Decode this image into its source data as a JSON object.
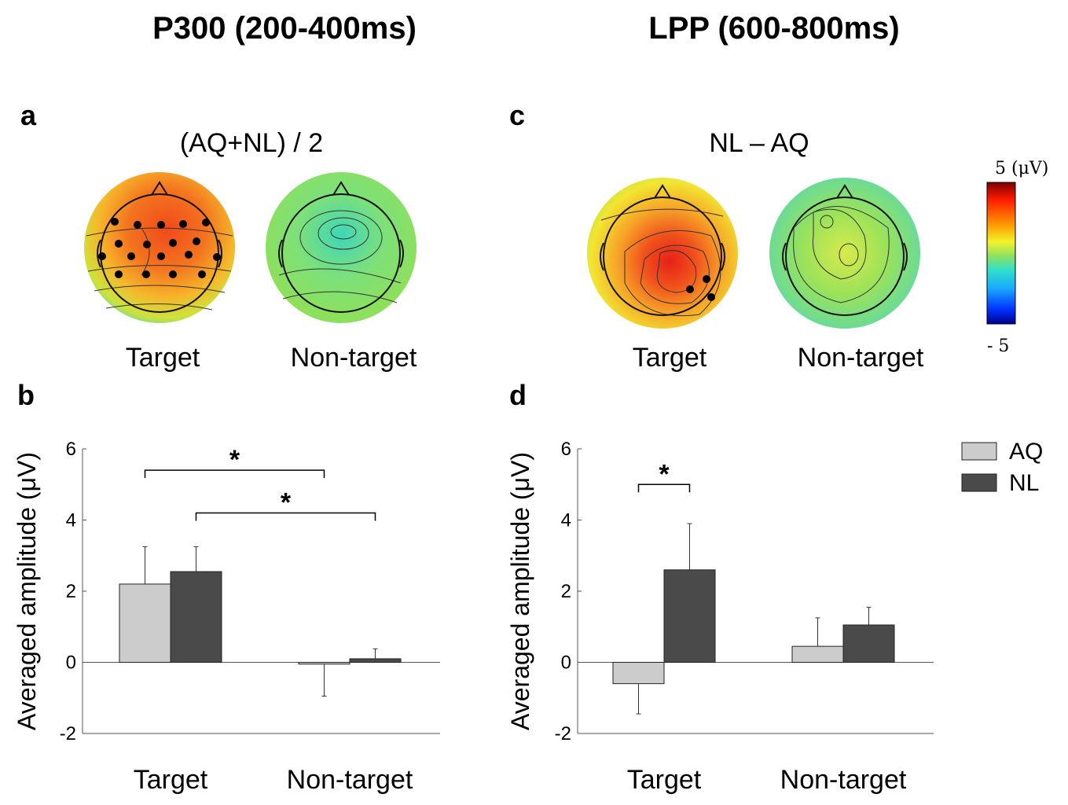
{
  "columns": {
    "left_title": "P300 (200-400ms)",
    "right_title": "LPP (600-800ms)"
  },
  "panels": {
    "a": {
      "letter": "a",
      "title": "(AQ+NL) / 2",
      "maps": [
        "Target",
        "Non-target"
      ]
    },
    "b": {
      "letter": "b"
    },
    "c": {
      "letter": "c",
      "title": "NL – AQ",
      "maps": [
        "Target",
        "Non-target"
      ]
    },
    "d": {
      "letter": "d"
    }
  },
  "colorbar": {
    "max_label": "5 (μV)",
    "min_label": "- 5"
  },
  "legend": {
    "items": [
      {
        "name": "AQ",
        "color": "#cccccc"
      },
      {
        "name": "NL",
        "color": "#4a4a4a"
      }
    ]
  },
  "chart_data": [
    {
      "panel": "b",
      "type": "bar",
      "categories": [
        "Target",
        "Non-target"
      ],
      "ylabel": "Averaged amplitude (μV)",
      "ylim": [
        -2,
        6
      ],
      "yticks": [
        -2,
        0,
        2,
        4,
        6
      ],
      "series": [
        {
          "name": "AQ",
          "values": [
            2.2,
            -0.05
          ],
          "errors": [
            1.05,
            0.9
          ]
        },
        {
          "name": "NL",
          "values": [
            2.55,
            0.1
          ],
          "errors": [
            0.7,
            0.28
          ]
        }
      ],
      "significance": [
        {
          "label": "*",
          "from": [
            0,
            0
          ],
          "to": [
            1,
            0
          ],
          "y": 5.4
        },
        {
          "label": "*",
          "from": [
            0,
            1
          ],
          "to": [
            1,
            1
          ],
          "y": 4.2
        }
      ]
    },
    {
      "panel": "d",
      "type": "bar",
      "categories": [
        "Target",
        "Non-target"
      ],
      "ylabel": "Averaged amplitude (μV)",
      "ylim": [
        -2,
        6
      ],
      "yticks": [
        -2,
        0,
        2,
        4,
        6
      ],
      "series": [
        {
          "name": "AQ",
          "values": [
            -0.6,
            0.45
          ],
          "errors": [
            0.85,
            0.8
          ]
        },
        {
          "name": "NL",
          "values": [
            2.6,
            1.05
          ],
          "errors": [
            1.3,
            0.5
          ]
        }
      ],
      "significance": [
        {
          "label": "*",
          "from": [
            0,
            0
          ],
          "to": [
            0,
            1
          ],
          "y": 5.0
        }
      ]
    }
  ]
}
